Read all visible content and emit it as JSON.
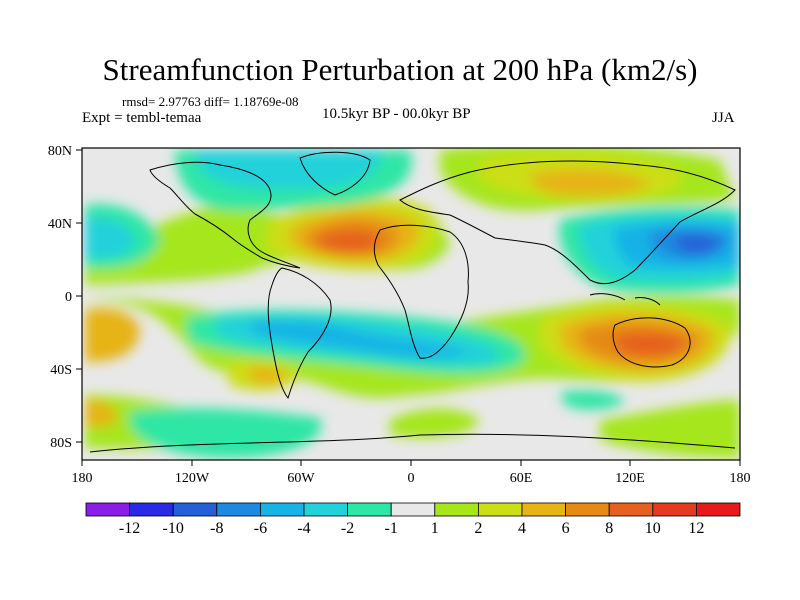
{
  "header": {
    "title": "Streamfunction Perturbation at 200 hPa (km2/s)",
    "stats": "rmsd= 2.97763 diff= 1.18769e-08",
    "experiment": "Expt = tembl-temaa",
    "period": "10.5kyr BP - 00.0kyr BP",
    "season": "JJA"
  },
  "axes": {
    "lon_labels": [
      "180",
      "120W",
      "60W",
      "0",
      "60E",
      "120E",
      "180"
    ],
    "lat_labels": [
      "80N",
      "40N",
      "0",
      "40S",
      "80S"
    ]
  },
  "colorbar": {
    "labels": [
      "-12",
      "-10",
      "-8",
      "-6",
      "-4",
      "-2",
      "-1",
      "1",
      "2",
      "4",
      "6",
      "8",
      "10",
      "12"
    ],
    "colors": [
      "#8a1ee6",
      "#2a2ae6",
      "#2560d8",
      "#1c8ae0",
      "#17b2e6",
      "#22d2da",
      "#2ee6a6",
      "#e8e8e8",
      "#a6e61a",
      "#ccde14",
      "#e6b414",
      "#e68a14",
      "#e6601e",
      "#e63a1e",
      "#e61a1a"
    ]
  },
  "map_colors": {
    "background": "#e8e8e8",
    "coast": "#000000"
  }
}
